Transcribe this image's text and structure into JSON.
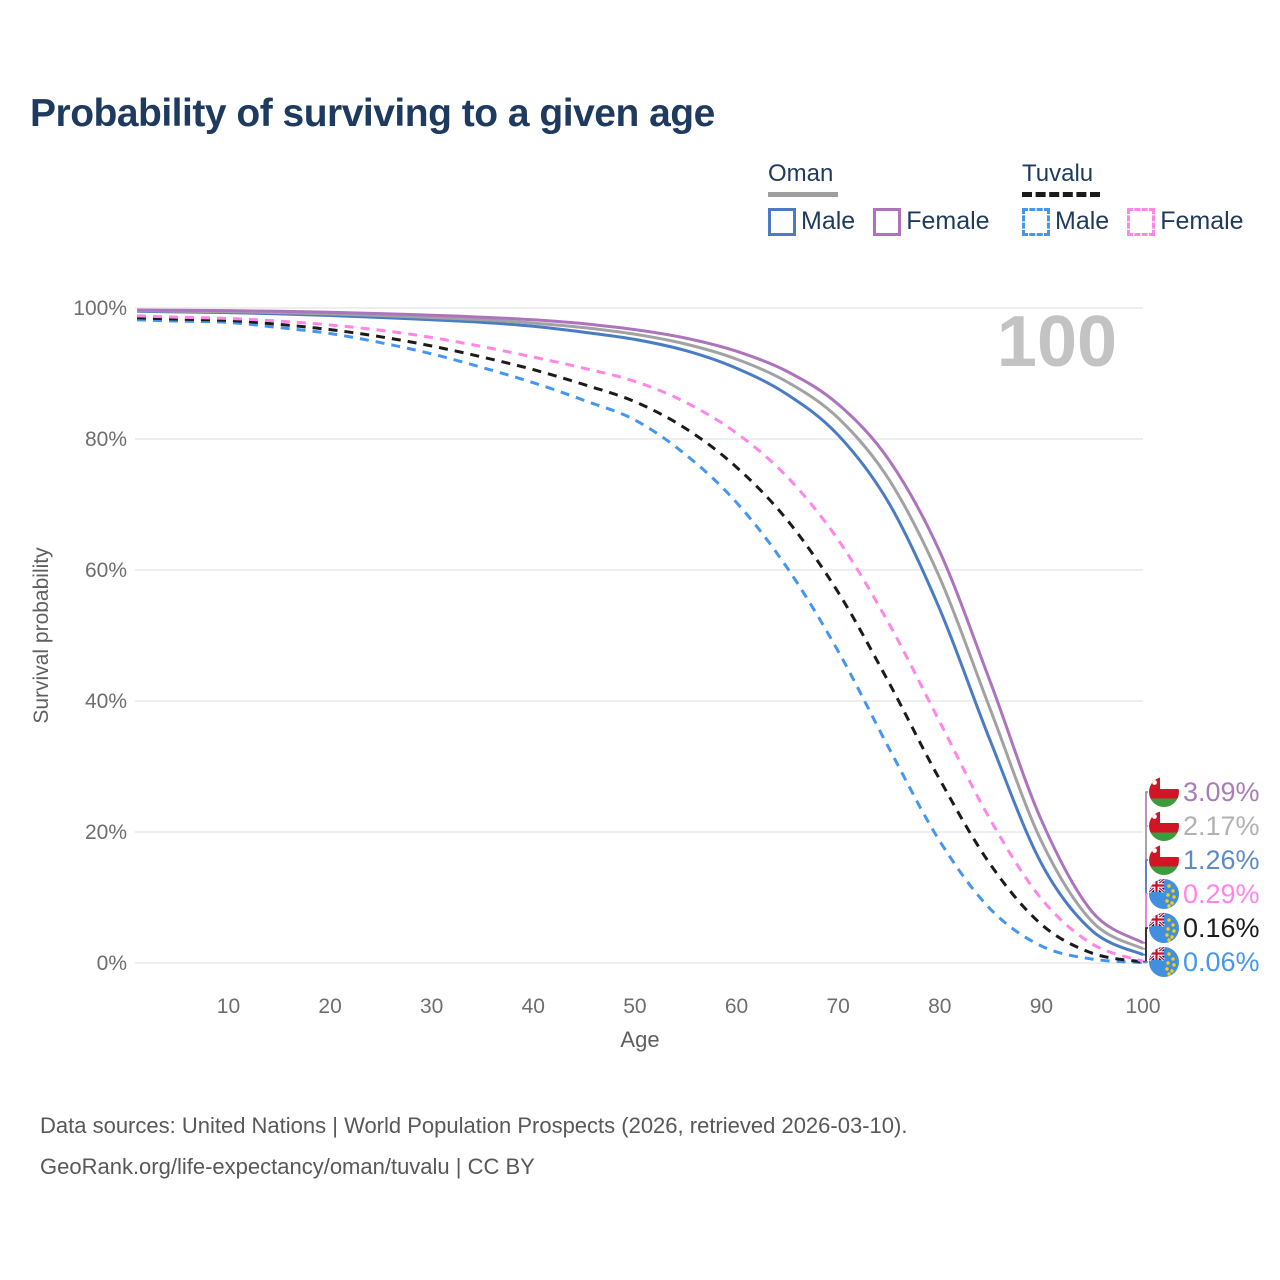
{
  "page": {
    "title": "Probability of surviving to a given age",
    "watermark": "100"
  },
  "legend": {
    "groups": [
      {
        "name": "Oman",
        "line_style": "solid",
        "underline_color": "#9e9e9e",
        "items": [
          {
            "label": "Male",
            "color": "#4a7cc4"
          },
          {
            "label": "Female",
            "color": "#ad74bd"
          }
        ]
      },
      {
        "name": "Tuvalu",
        "line_style": "dashed",
        "underline_color": "#1b1b1b",
        "items": [
          {
            "label": "Male",
            "color": "#4496f0"
          },
          {
            "label": "Female",
            "color": "#ff85e8"
          }
        ]
      }
    ]
  },
  "chart_data": {
    "type": "line",
    "title": "Probability of surviving to a given age",
    "xlabel": "Age",
    "ylabel": "Survival probability",
    "xlim": [
      1,
      100
    ],
    "ylim": [
      0,
      100
    ],
    "grid": "horizontal",
    "legend_position": "top-right",
    "watermark": "100",
    "x_ticks": [
      10,
      20,
      30,
      40,
      50,
      60,
      70,
      80,
      90,
      100
    ],
    "y_ticks": [
      {
        "label": "0%",
        "value": 0
      },
      {
        "label": "20%",
        "value": 20
      },
      {
        "label": "40%",
        "value": 40
      },
      {
        "label": "60%",
        "value": 60
      },
      {
        "label": "80%",
        "value": 80
      },
      {
        "label": "100%",
        "value": 100
      }
    ],
    "x": [
      1,
      5,
      10,
      15,
      20,
      25,
      30,
      35,
      40,
      45,
      50,
      55,
      60,
      65,
      70,
      75,
      80,
      85,
      90,
      95,
      100
    ],
    "series": [
      {
        "name": "Oman Female",
        "country": "Oman",
        "sex": "Female",
        "color": "#ad74bd",
        "dashed": false,
        "flag": "oman",
        "end_label": "3.09%",
        "end_label_color": "#a97cb8",
        "values": [
          99.7,
          99.65,
          99.6,
          99.5,
          99.35,
          99.15,
          98.9,
          98.6,
          98.2,
          97.6,
          96.7,
          95.4,
          93.4,
          90.3,
          85.3,
          76.8,
          62.8,
          42.8,
          21.8,
          7.8,
          3.09
        ]
      },
      {
        "name": "Oman Both sexes",
        "country": "Oman",
        "sex": "Total",
        "color": "#a2a2a2",
        "dashed": false,
        "flag": "oman",
        "end_label": "2.17%",
        "end_label_color": "#b2b2b2",
        "values": [
          99.6,
          99.5,
          99.45,
          99.3,
          99.1,
          98.85,
          98.55,
          98.2,
          97.7,
          97.0,
          96.0,
          94.5,
          92.2,
          88.7,
          83.2,
          73.8,
          58.8,
          38.6,
          18.6,
          6.3,
          2.17
        ]
      },
      {
        "name": "Oman Male",
        "country": "Oman",
        "sex": "Male",
        "color": "#4a7cc4",
        "dashed": false,
        "flag": "oman",
        "end_label": "1.26%",
        "end_label_color": "#5c8bc7",
        "values": [
          99.5,
          99.4,
          99.3,
          99.1,
          98.85,
          98.55,
          98.2,
          97.8,
          97.2,
          96.3,
          95.2,
          93.5,
          90.8,
          86.8,
          80.6,
          70.2,
          54.0,
          33.8,
          15.2,
          4.9,
          1.26
        ]
      },
      {
        "name": "Tuvalu Female",
        "country": "Tuvalu",
        "sex": "Female",
        "color": "#ff85e8",
        "dashed": true,
        "flag": "tuvalu",
        "end_label": "0.29%",
        "end_label_color": "#ff85e8",
        "values": [
          98.8,
          98.6,
          98.4,
          98.0,
          97.4,
          96.6,
          95.5,
          94.1,
          92.5,
          90.8,
          88.8,
          85.6,
          80.9,
          74.2,
          64.6,
          51.8,
          36.8,
          21.8,
          9.8,
          2.9,
          0.29
        ]
      },
      {
        "name": "Tuvalu Both sexes",
        "country": "Tuvalu",
        "sex": "Total",
        "color": "#1b1b1b",
        "dashed": true,
        "flag": "tuvalu",
        "end_label": "0.16%",
        "end_label_color": "#1b1b1b",
        "values": [
          98.5,
          98.3,
          98.1,
          97.5,
          96.7,
          95.6,
          94.2,
          92.5,
          90.6,
          88.3,
          85.7,
          81.6,
          75.7,
          67.6,
          56.6,
          42.8,
          28.0,
          15.0,
          5.9,
          1.5,
          0.16
        ]
      },
      {
        "name": "Tuvalu Male",
        "country": "Tuvalu",
        "sex": "Male",
        "color": "#4496f0",
        "dashed": true,
        "flag": "tuvalu",
        "end_label": "0.06%",
        "end_label_color": "#4496f0",
        "values": [
          98.2,
          98.0,
          97.8,
          97.0,
          96.1,
          94.7,
          93.0,
          90.9,
          88.6,
          85.9,
          82.9,
          77.6,
          70.3,
          60.3,
          47.6,
          32.8,
          18.6,
          8.2,
          2.6,
          0.6,
          0.06
        ]
      }
    ]
  },
  "footer": {
    "line1": "Data sources: United Nations | World Population Prospects (2026, retrieved 2026-03-10).",
    "line2": "GeoRank.org/life-expectancy/oman/tuvalu | CC BY"
  },
  "colors": {
    "title_text": "#1e3a5f",
    "tick_text": "#6e6e6e",
    "axis_title_text": "#5f5f5f",
    "gridline": "#e8e8e8",
    "watermark": "#c3c3c3",
    "footer_text": "#585858"
  }
}
